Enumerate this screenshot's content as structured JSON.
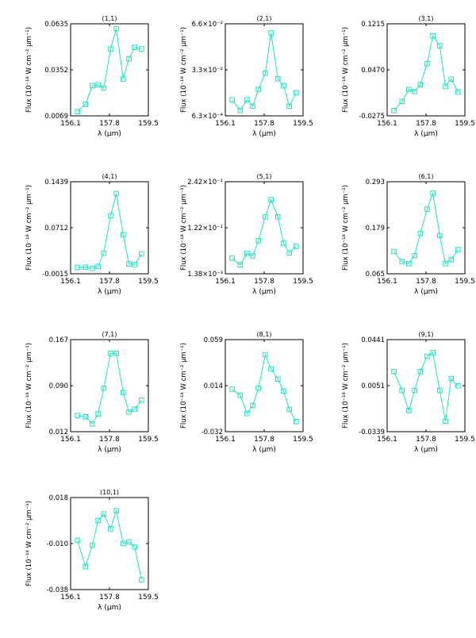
{
  "style": {
    "line_color": "#1fe3c2",
    "axis_color": "#000000"
  },
  "chart_data": [
    {
      "type": "line",
      "title": "(1,1)",
      "xlabel": "λ (μm)",
      "ylabel": "Flux (10⁻¹⁸ W cm⁻² μm⁻¹)",
      "xticks": [
        "156.1",
        "157.8",
        "159.5"
      ],
      "xlim": [
        156.1,
        159.5
      ],
      "yticks": [
        "0.0069",
        "0.0352",
        "0.0635"
      ],
      "ylim": [
        0.0069,
        0.0635
      ],
      "series": [
        {
          "x": [
            156.4,
            156.75,
            157.05,
            157.3,
            157.55,
            157.85,
            158.1,
            158.4,
            158.65,
            158.9,
            159.2
          ],
          "y": [
            0.0095,
            0.014,
            0.0255,
            0.026,
            0.024,
            0.048,
            0.0605,
            0.0295,
            0.042,
            0.049,
            0.048
          ]
        }
      ]
    },
    {
      "type": "line",
      "title": "(2,1)",
      "xlabel": "λ (μm)",
      "ylabel": "Flux (10⁻¹⁸ W cm⁻² μm⁻¹)",
      "xticks": [
        "156.1",
        "157.8",
        "159.5"
      ],
      "xlim": [
        156.1,
        159.5
      ],
      "yticks": [
        "6.3×10⁻⁴",
        "3.3×10⁻²",
        "6.6×10⁻²"
      ],
      "ylim": [
        0.00063,
        0.066
      ],
      "series": [
        {
          "x": [
            156.4,
            156.75,
            157.05,
            157.3,
            157.55,
            157.85,
            158.1,
            158.4,
            158.65,
            158.9,
            159.2
          ],
          "y": [
            0.012,
            0.0045,
            0.012,
            0.0075,
            0.0195,
            0.031,
            0.0595,
            0.027,
            0.022,
            0.0075,
            0.017
          ]
        }
      ]
    },
    {
      "type": "line",
      "title": "(3,1)",
      "xlabel": "λ (μm)",
      "ylabel": "Flux (10⁻¹⁸ W cm⁻² μm⁻¹)",
      "xticks": [
        "156.1",
        "157.8",
        "159.5"
      ],
      "xlim": [
        156.1,
        159.5
      ],
      "yticks": [
        "-0.0275",
        "0.0470",
        "0.1215"
      ],
      "ylim": [
        -0.0275,
        0.1215
      ],
      "series": [
        {
          "x": [
            156.4,
            156.75,
            157.05,
            157.3,
            157.55,
            157.85,
            158.1,
            158.4,
            158.65,
            158.9,
            159.2
          ],
          "y": [
            -0.019,
            -0.004,
            0.015,
            0.012,
            0.023,
            0.057,
            0.102,
            0.086,
            0.02,
            0.032,
            0.011
          ]
        }
      ]
    },
    {
      "type": "line",
      "title": "(4,1)",
      "xlabel": "λ (μm)",
      "ylabel": "Flux (10⁻¹⁸ W cm⁻² μm⁻¹)",
      "xticks": [
        "156.1",
        "157.8",
        "159.5"
      ],
      "xlim": [
        156.1,
        159.5
      ],
      "yticks": [
        "-0.0015",
        "0.0712",
        "0.1439"
      ],
      "ylim": [
        -0.0015,
        0.1439
      ],
      "series": [
        {
          "x": [
            156.4,
            156.75,
            157.05,
            157.3,
            157.55,
            157.85,
            158.1,
            158.4,
            158.65,
            158.9,
            159.2
          ],
          "y": [
            0.0085,
            0.009,
            0.007,
            0.01,
            0.031,
            0.09,
            0.125,
            0.06,
            0.014,
            0.013,
            0.03
          ]
        }
      ]
    },
    {
      "type": "line",
      "title": "(5,1)",
      "xlabel": "λ (μm)",
      "ylabel": "Flux (10⁻¹⁸ W cm⁻² μm⁻¹)",
      "xticks": [
        "156.1",
        "157.8",
        "159.5"
      ],
      "xlim": [
        156.1,
        159.5
      ],
      "yticks": [
        "1.38×10⁻³",
        "1.22×10⁻¹",
        "2.42×10⁻¹"
      ],
      "ylim": [
        0.00138,
        0.242
      ],
      "series": [
        {
          "x": [
            156.4,
            156.75,
            157.05,
            157.3,
            157.55,
            157.85,
            158.1,
            158.4,
            158.65,
            158.9,
            159.2
          ],
          "y": [
            0.042,
            0.025,
            0.055,
            0.048,
            0.088,
            0.15,
            0.195,
            0.15,
            0.081,
            0.056,
            0.073
          ]
        }
      ]
    },
    {
      "type": "line",
      "title": "(6,1)",
      "xlabel": "λ (μm)",
      "ylabel": "Flux (10⁻¹⁸ W cm⁻² μm⁻¹)",
      "xticks": [
        "156.1",
        "157.8",
        "159.5"
      ],
      "xlim": [
        156.1,
        159.5
      ],
      "yticks": [
        "0.065",
        "0.179",
        "0.293"
      ],
      "ylim": [
        0.065,
        0.293
      ],
      "series": [
        {
          "x": [
            156.4,
            156.75,
            157.05,
            157.3,
            157.55,
            157.85,
            158.1,
            158.4,
            158.65,
            158.9,
            159.2
          ],
          "y": [
            0.12,
            0.095,
            0.09,
            0.11,
            0.165,
            0.225,
            0.265,
            0.16,
            0.09,
            0.1,
            0.125
          ]
        }
      ]
    },
    {
      "type": "line",
      "title": "(7,1)",
      "xlabel": "λ (μm)",
      "ylabel": "Flux (10⁻¹⁸ W cm⁻² μm⁻¹)",
      "xticks": [
        "156.1",
        "157.8",
        "159.5"
      ],
      "xlim": [
        156.1,
        159.5
      ],
      "yticks": [
        "0.012",
        "0.090",
        "0.167"
      ],
      "ylim": [
        0.012,
        0.167
      ],
      "series": [
        {
          "x": [
            156.4,
            156.75,
            157.05,
            157.3,
            157.55,
            157.85,
            158.1,
            158.4,
            158.65,
            158.9,
            159.2
          ],
          "y": [
            0.039,
            0.037,
            0.025,
            0.042,
            0.085,
            0.144,
            0.144,
            0.078,
            0.045,
            0.05,
            0.065
          ]
        }
      ]
    },
    {
      "type": "line",
      "title": "(8,1)",
      "xlabel": "λ (μm)",
      "ylabel": "Flux (10⁻¹⁸ W cm⁻² μm⁻¹)",
      "xticks": [
        "156.1",
        "157.8",
        "159.5"
      ],
      "xlim": [
        156.1,
        159.5
      ],
      "yticks": [
        "-0.032",
        "0.014",
        "0.059"
      ],
      "ylim": [
        -0.032,
        0.059
      ],
      "series": [
        {
          "x": [
            156.4,
            156.75,
            157.05,
            157.3,
            157.55,
            157.85,
            158.1,
            158.4,
            158.65,
            158.9,
            159.2
          ],
          "y": [
            0.01,
            0.004,
            -0.014,
            -0.006,
            0.011,
            0.044,
            0.03,
            0.02,
            0.008,
            -0.01,
            -0.022
          ]
        }
      ]
    },
    {
      "type": "line",
      "title": "(9,1)",
      "xlabel": "λ (μm)",
      "ylabel": "Flux (10⁻¹⁸ W cm⁻² μm⁻¹)",
      "xticks": [
        "156.1",
        "157.8",
        "159.5"
      ],
      "xlim": [
        156.1,
        159.5
      ],
      "yticks": [
        "-0.0339",
        "0.0051",
        "0.0441"
      ],
      "ylim": [
        -0.0339,
        0.0441
      ],
      "series": [
        {
          "x": [
            156.4,
            156.75,
            157.05,
            157.3,
            157.55,
            157.85,
            158.1,
            158.4,
            158.65,
            158.9,
            159.2
          ],
          "y": [
            0.017,
            0.001,
            -0.016,
            0.001,
            0.017,
            0.03,
            0.033,
            0.001,
            -0.025,
            0.011,
            0.005
          ]
        }
      ]
    },
    {
      "type": "line",
      "title": "(10,1)",
      "xlabel": "λ (μm)",
      "ylabel": "Flux (10⁻¹⁸ W cm⁻² μm⁻¹)",
      "xticks": [
        "156.1",
        "157.8",
        "159.5"
      ],
      "xlim": [
        156.1,
        159.5
      ],
      "yticks": [
        "-0.038",
        "-0.010",
        "0.018"
      ],
      "ylim": [
        -0.038,
        0.018
      ],
      "series": [
        {
          "x": [
            156.4,
            156.75,
            157.05,
            157.3,
            157.55,
            157.85,
            158.1,
            158.4,
            158.65,
            158.9,
            159.2
          ],
          "y": [
            -0.008,
            -0.024,
            -0.011,
            0.004,
            0.008,
            -0.001,
            0.01,
            -0.01,
            -0.009,
            -0.012,
            -0.032
          ]
        }
      ]
    }
  ]
}
